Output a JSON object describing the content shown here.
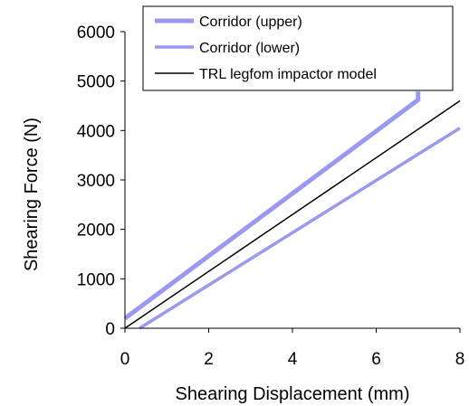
{
  "chart_data": {
    "type": "line",
    "title": "",
    "xlabel": "Shearing Displacement (mm)",
    "ylabel": "Shearing Force (N)",
    "xlim": [
      0,
      8
    ],
    "ylim": [
      0,
      6000
    ],
    "xticks": [
      "0",
      "2",
      "4",
      "6",
      "8"
    ],
    "yticks": [
      "0",
      "1000",
      "2000",
      "3000",
      "4000",
      "5000",
      "6000"
    ],
    "grid": false,
    "legend_position": "top-right",
    "series": [
      {
        "name": "Corridor (upper)",
        "color": "#9999ee",
        "style": "thick",
        "points": [
          [
            0,
            200
          ],
          [
            7,
            4620
          ],
          [
            7,
            4790
          ]
        ]
      },
      {
        "name": "Corridor (lower)",
        "color": "#9999ee",
        "style": "medium",
        "points": [
          [
            0.35,
            0
          ],
          [
            8,
            4050
          ]
        ]
      },
      {
        "name": "TRL legfom impactor model",
        "color": "#000000",
        "style": "thin",
        "points": [
          [
            0,
            0
          ],
          [
            8,
            4600
          ]
        ]
      }
    ]
  }
}
